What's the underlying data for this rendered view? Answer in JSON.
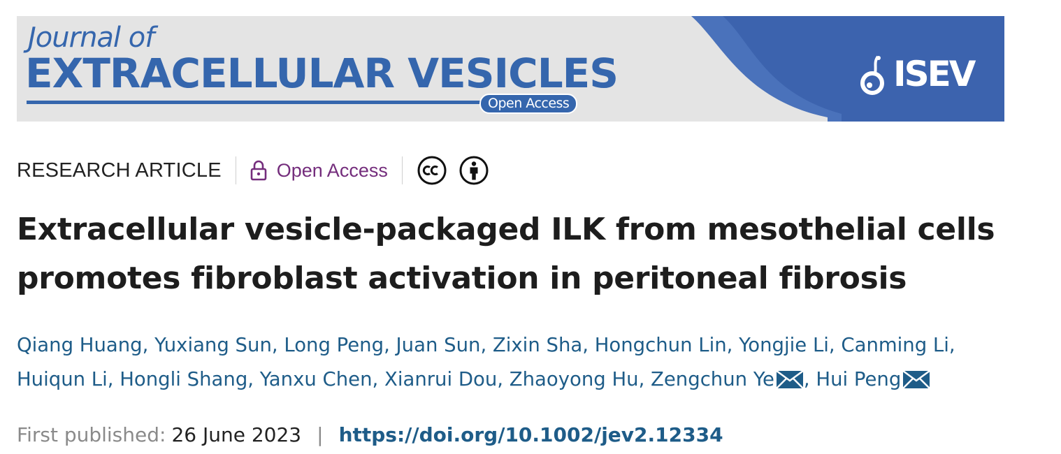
{
  "banner": {
    "journal_line1": "Journal of",
    "journal_line2": "EXTRACELLULAR VESICLES",
    "open_access_tag": "Open Access",
    "society": "ISEV",
    "colors": {
      "brand_blue": "#3566ad",
      "banner_bg": "#e4e4e4"
    }
  },
  "meta": {
    "article_type": "RESEARCH ARTICLE",
    "open_access": "Open Access",
    "icons": [
      "lock-icon",
      "cc-icon",
      "cc-by-icon"
    ],
    "colors": {
      "open_access": "#742d7c"
    }
  },
  "title": {
    "line1": "Extracellular vesicle-packaged ILK from mesothelial cells",
    "line2": "promotes fibroblast activation in peritoneal fibrosis"
  },
  "authors": [
    "Qiang Huang",
    "Yuxiang Sun",
    "Long Peng",
    "Juan Sun",
    "Zixin Sha",
    "Hongchun Lin",
    "Yongjie Li",
    "Canming Li",
    "Huiqun Li",
    "Hongli Shang",
    "Yanxu Chen",
    "Xianrui Dou",
    "Zhaoyong Hu",
    "Zengchun Ye",
    "Hui Peng"
  ],
  "published": {
    "label": "First published:",
    "date": "26 June 2023",
    "separator": "|",
    "doi": "https://doi.org/10.1002/jev2.12334"
  },
  "colors": {
    "link": "#1e5c88",
    "title": "#1d1d1d"
  }
}
